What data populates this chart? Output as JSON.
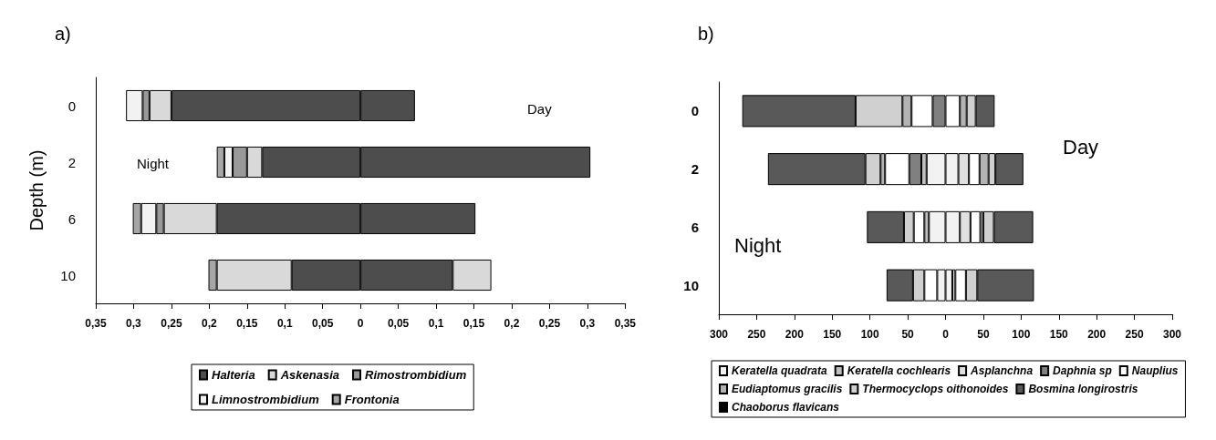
{
  "chart_data": [
    {
      "type": "bar",
      "orientation": "horizontal",
      "stacked": true,
      "title": "a)",
      "ylabel": "Depth (m)",
      "annotations": [
        "Night",
        "Day"
      ],
      "legend": "bottom",
      "categories": [
        "0",
        "2",
        "6",
        "10"
      ],
      "xlim": [
        -0.35,
        0.35
      ],
      "xticks": [
        {
          "value": -0.35,
          "label": "0,35"
        },
        {
          "value": -0.3,
          "label": "0,3"
        },
        {
          "value": -0.25,
          "label": "0,25"
        },
        {
          "value": -0.2,
          "label": "0,2"
        },
        {
          "value": -0.15,
          "label": "0,15"
        },
        {
          "value": -0.1,
          "label": "0,1"
        },
        {
          "value": -0.05,
          "label": "0,05"
        },
        0,
        {
          "value": 0.05,
          "label": "0,05"
        },
        {
          "value": 0.1,
          "label": "0,1"
        },
        {
          "value": 0.15,
          "label": "0,15"
        },
        {
          "value": 0.2,
          "label": "0,2"
        },
        {
          "value": 0.25,
          "label": "0,25"
        },
        {
          "value": 0.3,
          "label": "0,3"
        },
        {
          "value": 0.35,
          "label": "0,35"
        }
      ],
      "series": [
        {
          "name": "Halteria",
          "color": "#4d4d4d",
          "values": [
            -0.25,
            -0.13,
            -0.19,
            -0.091
          ]
        },
        {
          "color": "#4d4d4d",
          "values": [
            0.072,
            0.304,
            0.152,
            0.122
          ]
        },
        {
          "name": "Askenasia",
          "color": "#d9d9d9",
          "values": [
            -0.029,
            -0.02,
            -0.07,
            -0.099
          ]
        },
        {
          "color": "#d9d9d9",
          "values": [
            null,
            null,
            null,
            0.051
          ]
        },
        {
          "name": "Rimostrombidium",
          "color": "#999999",
          "values": [
            -0.009,
            -0.019,
            -0.01,
            null
          ]
        },
        {
          "name": "Limnostrombidium",
          "color": "#f2f2f2",
          "values": [
            -0.022,
            -0.011,
            -0.02,
            null
          ]
        },
        {
          "name": "Frontonia",
          "color": "#a6a6a6",
          "values": [
            null,
            -0.01,
            -0.011,
            -0.011
          ]
        }
      ]
    },
    {
      "type": "bar",
      "orientation": "horizontal",
      "stacked": true,
      "title": "b)",
      "annotations": [
        "Night",
        "Day"
      ],
      "legend": "bottom",
      "categories": [
        "0",
        "2",
        "6",
        "10"
      ],
      "xlim": [
        -300,
        300
      ],
      "xticks": [
        {
          "value": -300,
          "label": "300"
        },
        {
          "value": -250,
          "label": "250"
        },
        {
          "value": -200,
          "label": "200"
        },
        {
          "value": -150,
          "label": "150"
        },
        {
          "value": -100,
          "label": "100"
        },
        {
          "value": -50,
          "label": "50"
        },
        0,
        50,
        100,
        150,
        200,
        250,
        300
      ],
      "series": [
        {
          "name": "Keratella quadrata",
          "color": "#f2f2f2",
          "values": [
            null,
            -25,
            -22,
            -11
          ]
        },
        {
          "color": "#f2f2f2",
          "values": [
            null,
            17,
            19,
            9
          ]
        },
        {
          "name": "Keratella cochlearis",
          "color": "#bfbfbf",
          "values": [
            null,
            -7,
            -6,
            null
          ]
        },
        {
          "name": "Asplanchna",
          "color": "#e0e0e0",
          "values": [
            null,
            14,
            14,
            4
          ]
        },
        {
          "name": "Daphnia sp",
          "color": "#808080",
          "values": [
            -17,
            -16,
            null,
            null
          ]
        },
        {
          "name": "Nauplius",
          "color": "#ffffff",
          "values": [
            -28,
            -32,
            -14,
            -17
          ]
        },
        {
          "color": "#ffffff",
          "values": [
            19,
            14,
            13,
            14
          ]
        },
        {
          "name": "Eudiaptomus gracilis",
          "color": "#b3b3b3",
          "values": [
            -12,
            -6,
            null,
            null
          ]
        },
        {
          "color": "#b3b3b3",
          "values": [
            9,
            12,
            4,
            null
          ]
        },
        {
          "name": "Thermocyclops oithonoides",
          "color": "#d0d0d0",
          "values": [
            -62,
            -20,
            -13,
            -15
          ]
        },
        {
          "color": "#d0d0d0",
          "values": [
            12,
            9,
            14,
            15
          ]
        },
        {
          "name": "Bosmina longirostris",
          "color": "#595959",
          "values": [
            -150,
            -129,
            -49,
            -35
          ]
        },
        {
          "color": "#595959",
          "values": [
            25,
            37,
            52,
            75
          ]
        },
        {
          "name": "Chaoborus flavicans",
          "color": "#000000",
          "values": [
            null,
            null,
            null,
            null
          ]
        }
      ]
    }
  ]
}
